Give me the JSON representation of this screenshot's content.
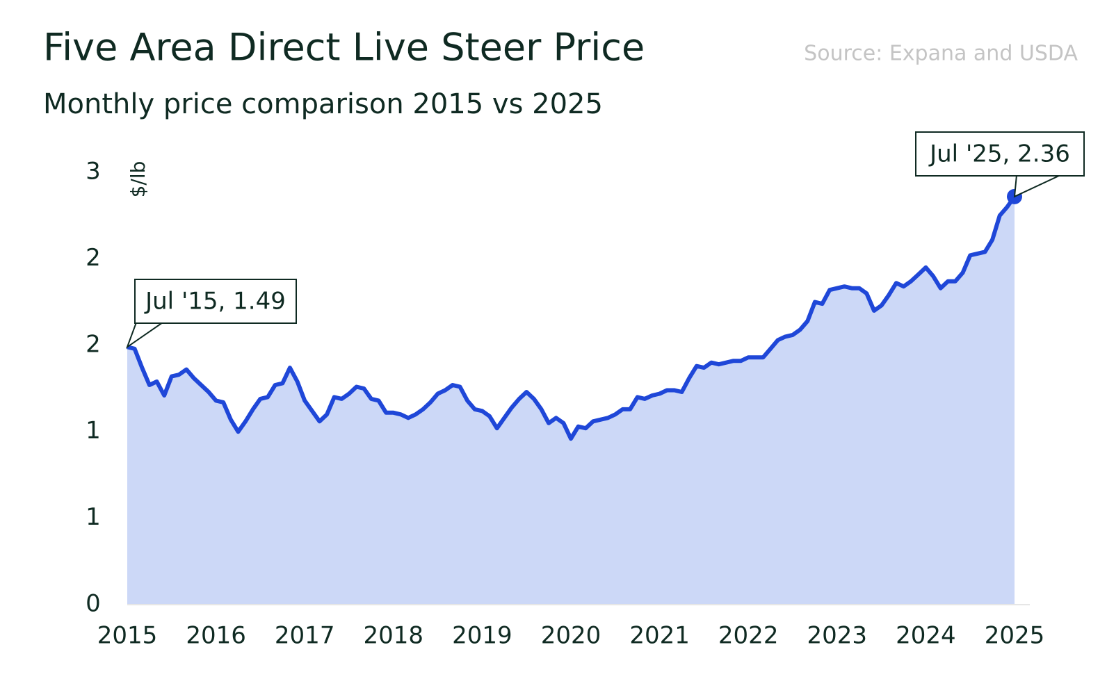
{
  "chart_data": {
    "type": "area",
    "title": "Five Area Direct Live Steer Price",
    "subtitle": "Monthly price comparison 2015 vs 2025",
    "source": "Source: Expana and USDA",
    "y_label": "$/lb",
    "color": "#1f47d8",
    "fill_color": "#ccd8f7",
    "annotations": [
      "Jul '15, 1.49",
      "Jul '25, 2.36"
    ],
    "xlim": [
      "2015-07",
      "2025-07"
    ],
    "xticks": [
      {
        "value": "2015-07",
        "label": "2015"
      },
      {
        "value": "2016-07",
        "label": "2016"
      },
      {
        "value": "2017-07",
        "label": "2017"
      },
      {
        "value": "2018-07",
        "label": "2018"
      },
      {
        "value": "2019-07",
        "label": "2019"
      },
      {
        "value": "2020-07",
        "label": "2020"
      },
      {
        "value": "2021-07",
        "label": "2021"
      },
      {
        "value": "2022-07",
        "label": "2022"
      },
      {
        "value": "2023-07",
        "label": "2023"
      },
      {
        "value": "2024-07",
        "label": "2024"
      },
      {
        "value": "2025-07",
        "label": "2025"
      }
    ],
    "ylim": [
      0,
      2.5
    ],
    "yticks": [
      0,
      {
        "value": 0.5,
        "label": "1"
      },
      1,
      {
        "value": 1.5,
        "label": "2"
      },
      2,
      {
        "value": 2.5,
        "label": "3"
      }
    ],
    "x": [
      "2015-07",
      "2015-08",
      "2015-09",
      "2015-10",
      "2015-11",
      "2015-12",
      "2016-01",
      "2016-02",
      "2016-03",
      "2016-04",
      "2016-05",
      "2016-06",
      "2016-07",
      "2016-08",
      "2016-09",
      "2016-10",
      "2016-11",
      "2016-12",
      "2017-01",
      "2017-02",
      "2017-03",
      "2017-04",
      "2017-05",
      "2017-06",
      "2017-07",
      "2017-08",
      "2017-09",
      "2017-10",
      "2017-11",
      "2017-12",
      "2018-01",
      "2018-02",
      "2018-03",
      "2018-04",
      "2018-05",
      "2018-06",
      "2018-07",
      "2018-08",
      "2018-09",
      "2018-10",
      "2018-11",
      "2018-12",
      "2019-01",
      "2019-02",
      "2019-03",
      "2019-04",
      "2019-05",
      "2019-06",
      "2019-07",
      "2019-08",
      "2019-09",
      "2019-10",
      "2019-11",
      "2019-12",
      "2020-01",
      "2020-02",
      "2020-03",
      "2020-04",
      "2020-05",
      "2020-06",
      "2020-07",
      "2020-08",
      "2020-09",
      "2020-10",
      "2020-11",
      "2020-12",
      "2021-01",
      "2021-02",
      "2021-03",
      "2021-04",
      "2021-05",
      "2021-06",
      "2021-07",
      "2021-08",
      "2021-09",
      "2021-10",
      "2021-11",
      "2021-12",
      "2022-01",
      "2022-02",
      "2022-03",
      "2022-04",
      "2022-05",
      "2022-06",
      "2022-07",
      "2022-08",
      "2022-09",
      "2022-10",
      "2022-11",
      "2022-12",
      "2023-01",
      "2023-02",
      "2023-03",
      "2023-04",
      "2023-05",
      "2023-06",
      "2023-07",
      "2023-08",
      "2023-09",
      "2023-10",
      "2023-11",
      "2023-12",
      "2024-01",
      "2024-02",
      "2024-03",
      "2024-04",
      "2024-05",
      "2024-06",
      "2024-07",
      "2024-08",
      "2024-09",
      "2024-10",
      "2024-11",
      "2024-12",
      "2025-01",
      "2025-02",
      "2025-03",
      "2025-04",
      "2025-05",
      "2025-06",
      "2025-07"
    ],
    "values": [
      1.49,
      1.48,
      1.37,
      1.27,
      1.29,
      1.21,
      1.32,
      1.33,
      1.36,
      1.31,
      1.27,
      1.23,
      1.18,
      1.17,
      1.07,
      1.0,
      1.06,
      1.13,
      1.19,
      1.2,
      1.27,
      1.28,
      1.37,
      1.29,
      1.18,
      1.12,
      1.06,
      1.1,
      1.2,
      1.19,
      1.22,
      1.26,
      1.25,
      1.19,
      1.18,
      1.11,
      1.11,
      1.1,
      1.08,
      1.1,
      1.13,
      1.17,
      1.22,
      1.24,
      1.27,
      1.26,
      1.18,
      1.13,
      1.12,
      1.09,
      1.02,
      1.08,
      1.14,
      1.19,
      1.23,
      1.19,
      1.13,
      1.05,
      1.08,
      1.05,
      0.96,
      1.03,
      1.02,
      1.06,
      1.07,
      1.08,
      1.1,
      1.13,
      1.13,
      1.2,
      1.19,
      1.21,
      1.22,
      1.24,
      1.24,
      1.23,
      1.31,
      1.38,
      1.37,
      1.4,
      1.39,
      1.4,
      1.41,
      1.41,
      1.43,
      1.43,
      1.43,
      1.48,
      1.53,
      1.55,
      1.56,
      1.59,
      1.64,
      1.75,
      1.74,
      1.82,
      1.83,
      1.84,
      1.83,
      1.83,
      1.8,
      1.7,
      1.73,
      1.79,
      1.86,
      1.84,
      1.87,
      1.91,
      1.95,
      1.9,
      1.83,
      1.87,
      1.87,
      1.92,
      2.02,
      2.03,
      2.04,
      2.11,
      2.25,
      2.3,
      2.36
    ]
  }
}
